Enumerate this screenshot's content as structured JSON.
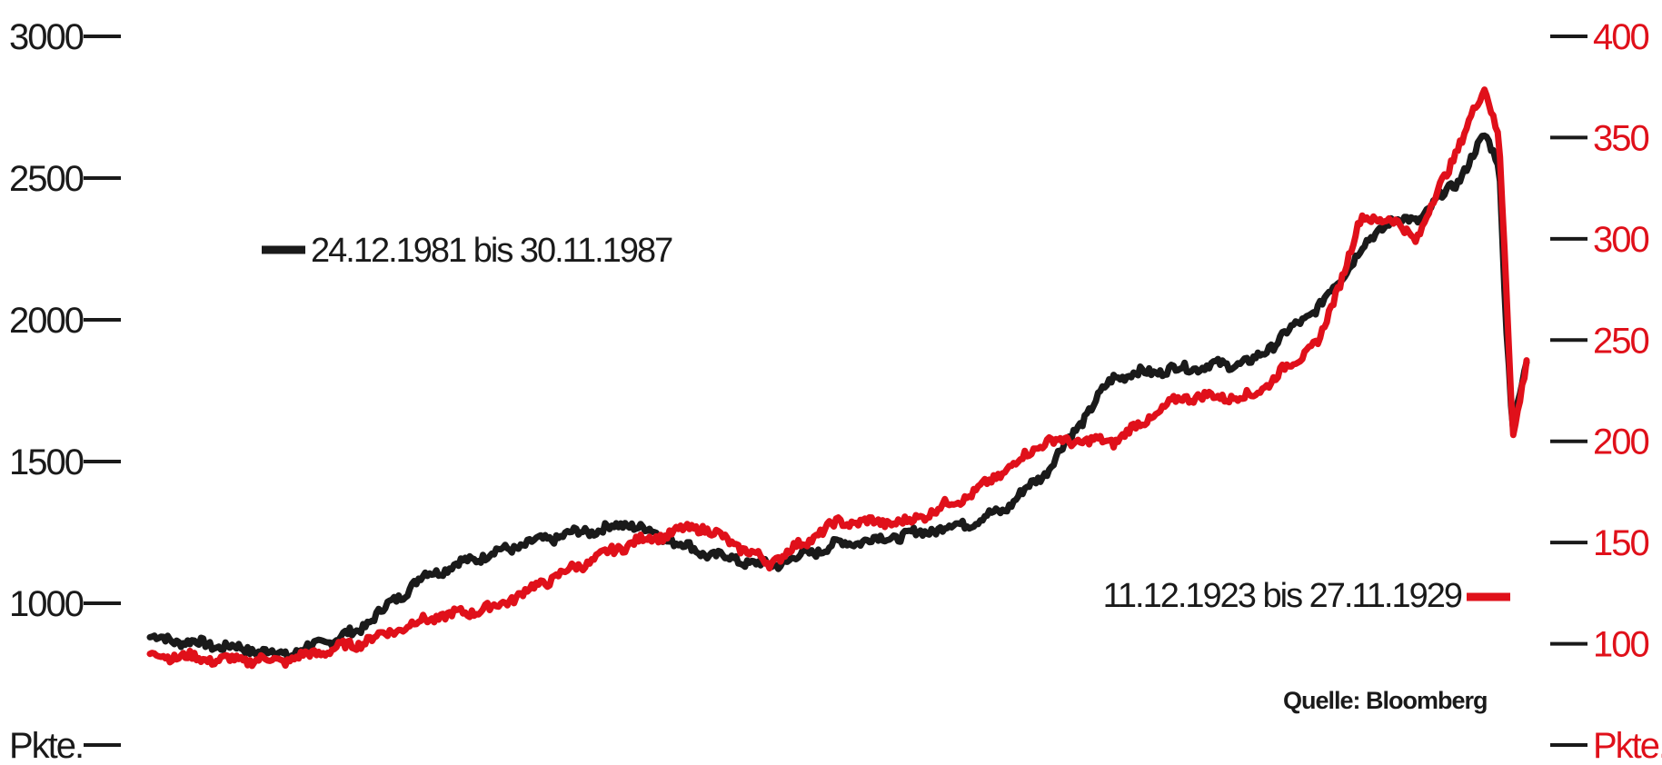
{
  "chart_data": {
    "type": "line",
    "left_axis": {
      "ticks": [
        1000,
        1500,
        2000,
        2500,
        3000
      ],
      "unit_label": "Pkte.",
      "ylim": [
        500,
        3000
      ],
      "color": "#1a1a1a"
    },
    "right_axis": {
      "ticks": [
        100,
        150,
        200,
        250,
        300,
        350,
        400
      ],
      "unit_label": "Pkte.",
      "ylim": [
        50,
        400
      ],
      "color": "#e0101a"
    },
    "x": [
      0,
      0.05,
      0.1,
      0.15,
      0.2,
      0.25,
      0.3,
      0.35,
      0.4,
      0.45,
      0.5,
      0.55,
      0.6,
      0.62,
      0.65,
      0.7,
      0.75,
      0.8,
      0.85,
      0.88,
      0.9,
      0.92,
      0.95,
      0.97,
      0.98,
      0.985,
      0.99,
      1.0
    ],
    "series": [
      {
        "name": "24.12.1981 bis 30.11.1987",
        "axis": "left",
        "color": "#1a1a1a",
        "values": [
          880,
          850,
          820,
          900,
          1100,
          1180,
          1240,
          1280,
          1180,
          1130,
          1210,
          1240,
          1290,
          1330,
          1460,
          1800,
          1830,
          1850,
          2050,
          2250,
          2350,
          2350,
          2490,
          2650,
          2560,
          2000,
          1600,
          1850
        ]
      },
      {
        "name": "11.12.1923 bis 27.11.1929",
        "axis": "right",
        "color": "#e0101a",
        "values": [
          95,
          92,
          92,
          100,
          112,
          118,
          135,
          150,
          158,
          140,
          160,
          160,
          175,
          185,
          200,
          200,
          222,
          222,
          250,
          310,
          310,
          300,
          345,
          375,
          350,
          280,
          200,
          240
        ]
      }
    ]
  },
  "legend": {
    "black": "24.12.1981 bis 30.11.1987",
    "red": "11.12.1923 bis 27.11.1929"
  },
  "source": "Quelle: Bloomberg"
}
